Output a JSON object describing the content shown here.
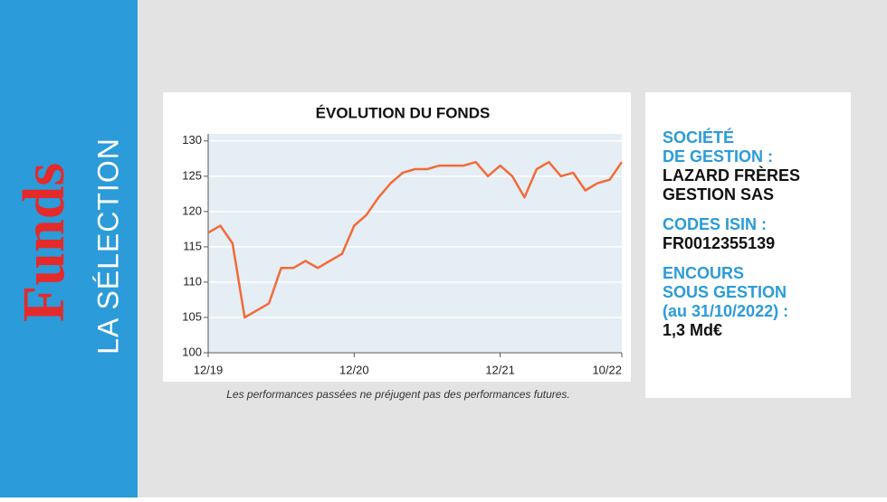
{
  "sidebar": {
    "title": "Funds",
    "subtitle": "LA SÉLECTION"
  },
  "chart_data": {
    "type": "line",
    "title": "ÉVOLUTION DU FONDS",
    "x": [
      "2019-12",
      "2020-01",
      "2020-02",
      "2020-03",
      "2020-04",
      "2020-05",
      "2020-06",
      "2020-07",
      "2020-08",
      "2020-09",
      "2020-10",
      "2020-11",
      "2020-12",
      "2021-01",
      "2021-02",
      "2021-03",
      "2021-04",
      "2021-05",
      "2021-06",
      "2021-07",
      "2021-08",
      "2021-09",
      "2021-10",
      "2021-11",
      "2021-12",
      "2022-01",
      "2022-02",
      "2022-03",
      "2022-04",
      "2022-05",
      "2022-06",
      "2022-07",
      "2022-08",
      "2022-09",
      "2022-10"
    ],
    "values": [
      117,
      118,
      115.5,
      105,
      106,
      107,
      112,
      112,
      113,
      112,
      113,
      114,
      118,
      119.5,
      122,
      124,
      125.5,
      126,
      126,
      126.5,
      126.5,
      126.5,
      127,
      125,
      126.5,
      125,
      122,
      126,
      127,
      125,
      125.5,
      123,
      124,
      124.5,
      127
    ],
    "color": "#f26b3a",
    "xlim": [
      "2019-12",
      "2022-10"
    ],
    "xticks": [
      {
        "value": "2019-12",
        "label": "12/19"
      },
      {
        "value": "2020-12",
        "label": "12/20"
      },
      {
        "value": "2021-12",
        "label": "12/21"
      },
      {
        "value": "2022-10",
        "label": "10/22"
      }
    ],
    "ylim": [
      100,
      131
    ],
    "yticks": [
      100,
      105,
      110,
      115,
      120,
      125,
      130
    ],
    "grid": true,
    "note": "Les performances passées ne préjugent pas des performances futures."
  },
  "info": {
    "items": [
      {
        "label": [
          "SOCIÉTÉ",
          "DE GESTION :"
        ],
        "value": [
          "LAZARD FRÈRES",
          "GESTION SAS"
        ]
      },
      {
        "label": [
          "CODES ISIN :"
        ],
        "value": [
          "FR0012355139"
        ]
      },
      {
        "label": [
          "ENCOURS",
          "SOUS GESTION",
          "(au 31/10/2022) :"
        ],
        "value": [
          "1,3 Md€"
        ]
      }
    ]
  }
}
